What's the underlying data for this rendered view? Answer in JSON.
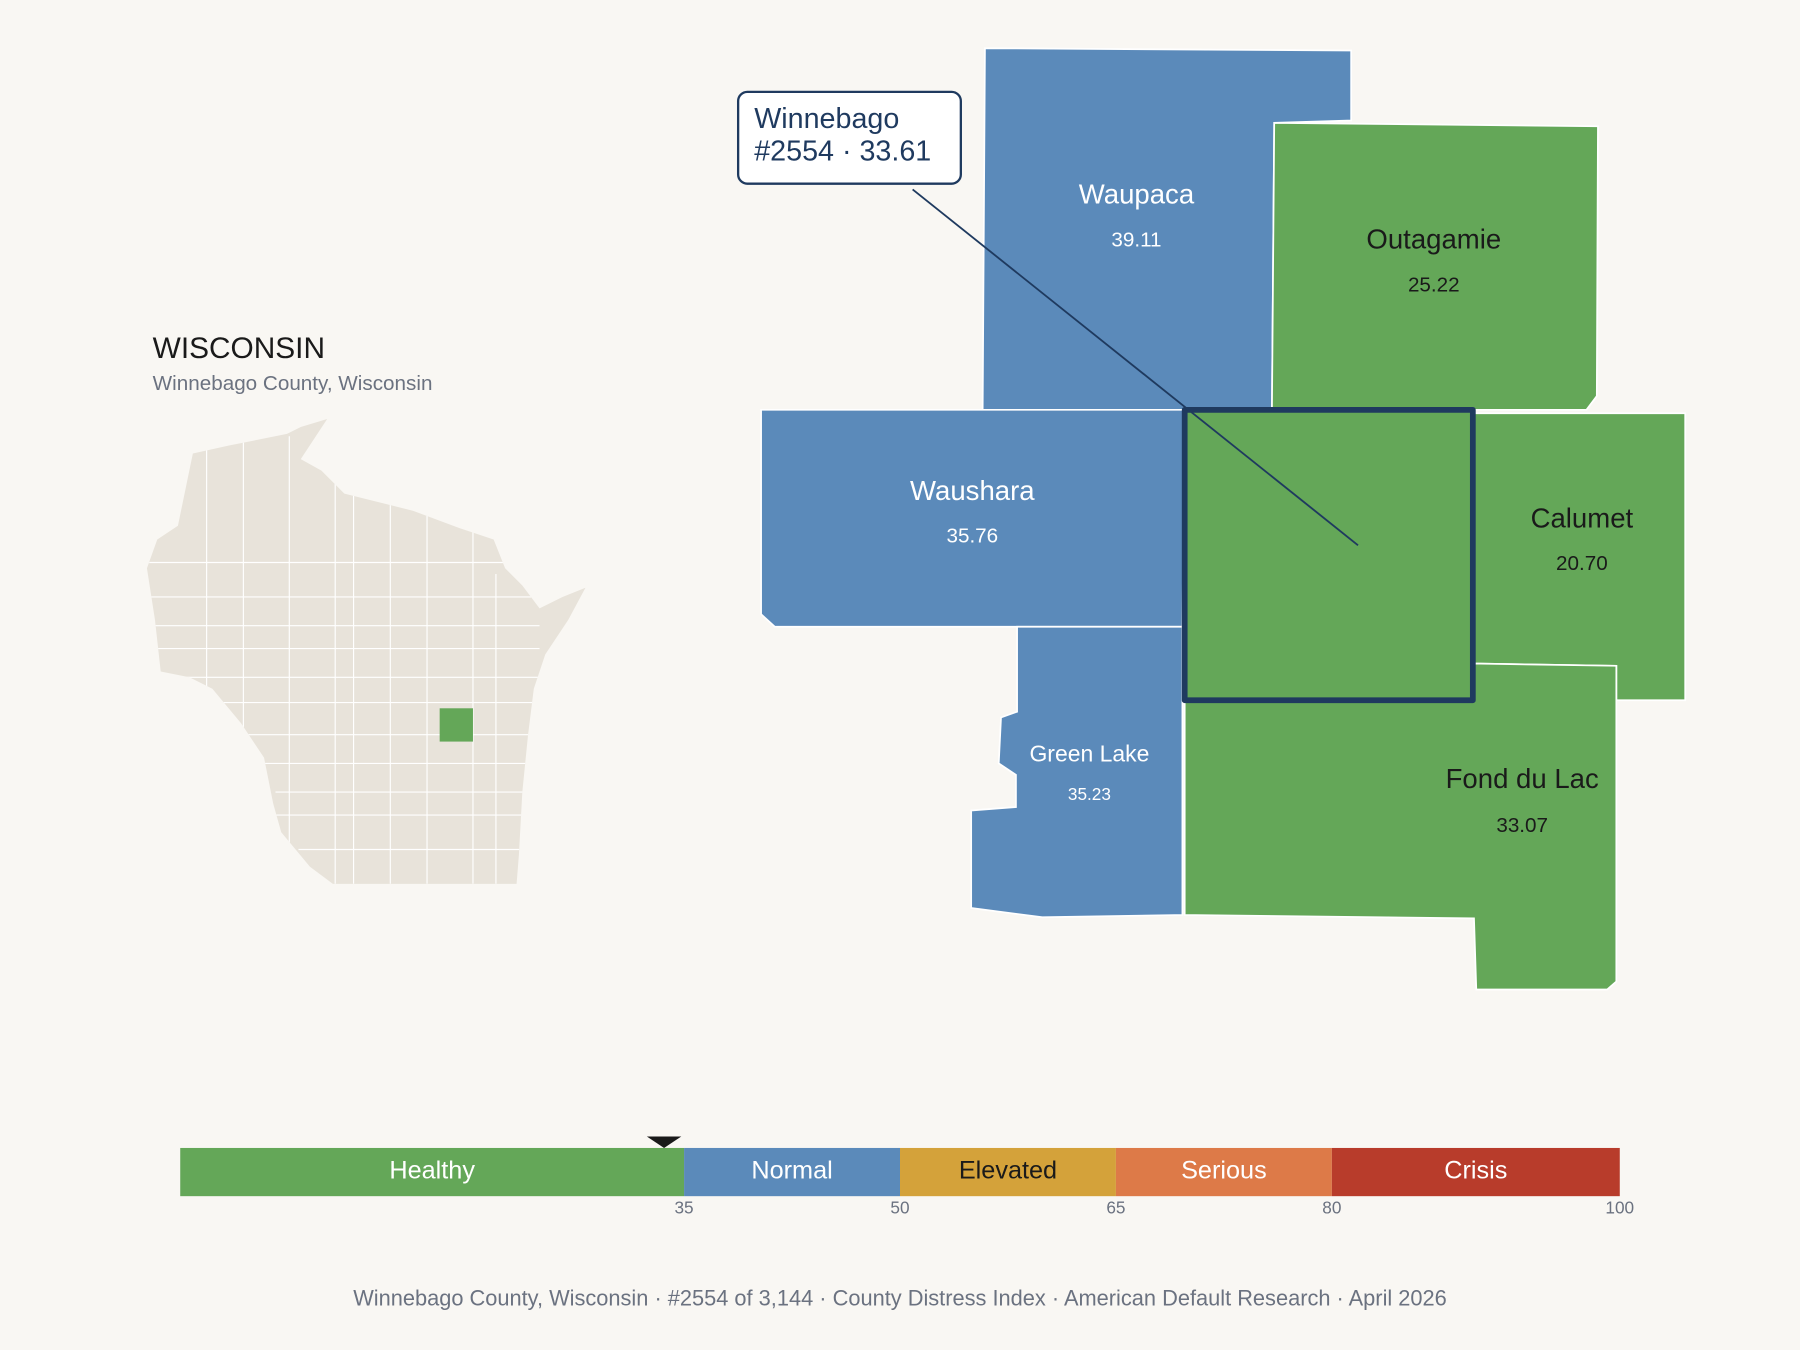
{
  "header": {
    "title": "WISCONSIN",
    "subtitle": "Winnebago County, Wisconsin"
  },
  "focus": {
    "name": "Winnebago",
    "label": "#2554 · 33.61",
    "value": 33.61,
    "color": "#64a758"
  },
  "counties": [
    {
      "name": "Waupaca",
      "value": 39.11,
      "color": "#5b8aba"
    },
    {
      "name": "Outagamie",
      "value": 25.22,
      "color": "#64a758"
    },
    {
      "name": "Waushara",
      "value": 35.76,
      "color": "#5b8aba"
    },
    {
      "name": "Calumet",
      "value": 20.7,
      "value_label": "20.70",
      "color": "#64a758"
    },
    {
      "name": "Fond du Lac",
      "value": 33.07,
      "color": "#64a758"
    },
    {
      "name": "Green Lake",
      "value": 35.23,
      "color": "#5b8aba"
    }
  ],
  "scale": {
    "lim": [
      0,
      100
    ],
    "ticks": [
      35,
      50,
      65,
      80,
      100
    ],
    "bands": [
      {
        "name": "Healthy",
        "color": "#64a758"
      },
      {
        "name": "Normal",
        "color": "#5b8aba"
      },
      {
        "name": "Elevated",
        "color": "#d4a23a"
      },
      {
        "name": "Serious",
        "color": "#dd7a48"
      },
      {
        "name": "Crisis",
        "color": "#b83c2b"
      }
    ]
  },
  "footer": "Winnebago County, Wisconsin  ·  #2554 of 3,144  ·  County Distress Index  ·  American Default Research  ·  April 2026"
}
